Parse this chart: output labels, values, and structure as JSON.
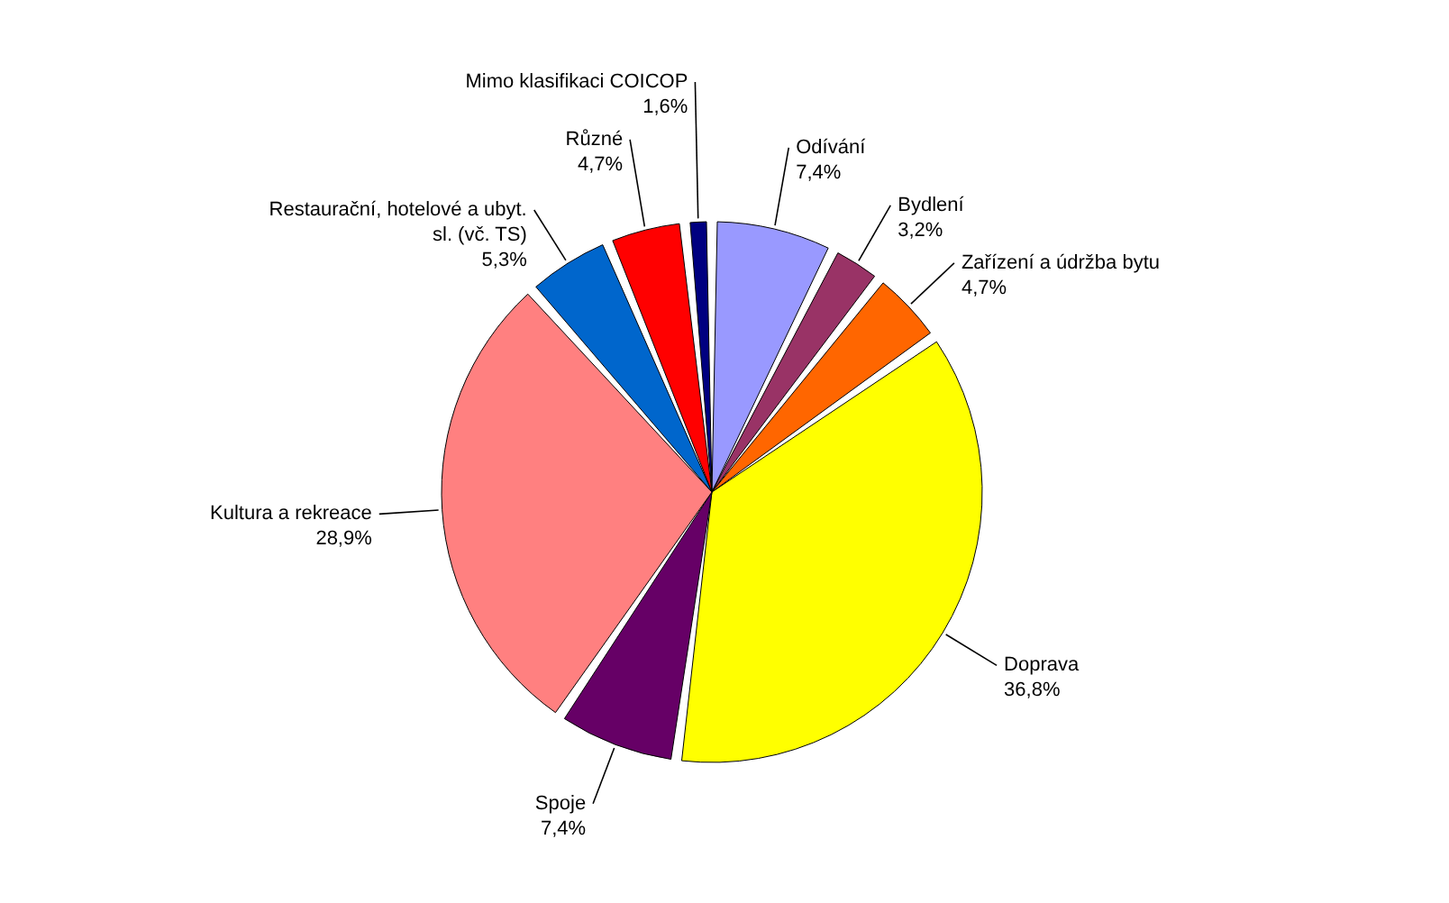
{
  "chart_data": {
    "type": "pie",
    "categories": [
      "Odívání",
      "Bydlení",
      "Zařízení a údržba bytu",
      "Doprava",
      "Spoje",
      "Kultura a rekreace",
      "Restaurační, hotelové a ubyt. sl. (vč. TS)",
      "Různé",
      "Mimo klasifikaci COICOP"
    ],
    "values": [
      7.4,
      3.2,
      4.7,
      36.8,
      7.4,
      28.9,
      5.3,
      4.7,
      1.6
    ],
    "colors": [
      "#9999ff",
      "#993366",
      "#ff6600",
      "#ffff00",
      "#660066",
      "#ff8080",
      "#0066cc",
      "#ff0000",
      "#000080"
    ],
    "value_labels": [
      "7,4%",
      "3,2%",
      "4,7%",
      "36,8%",
      "7,4%",
      "28,9%",
      "5,3%",
      "4,7%",
      "1,6%"
    ]
  }
}
